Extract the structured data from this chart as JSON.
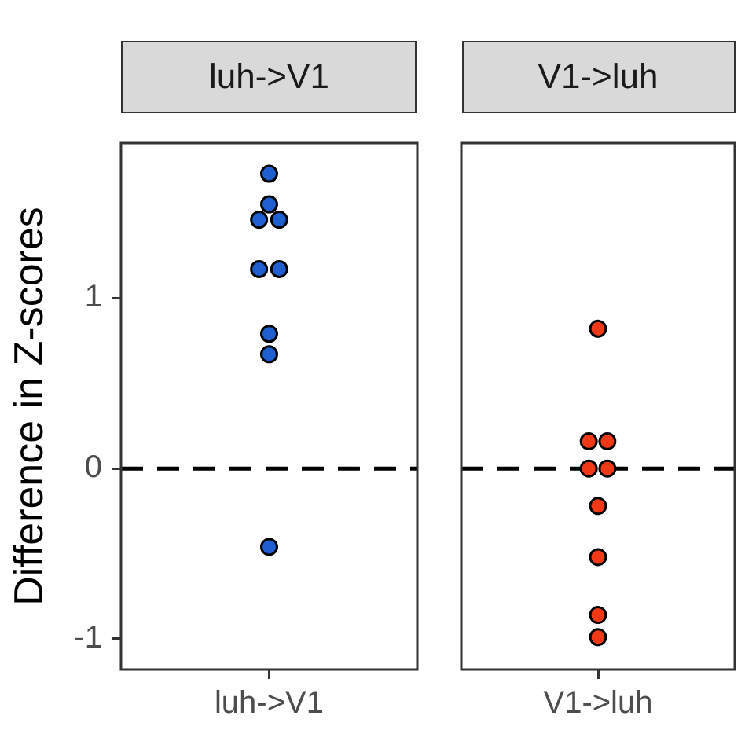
{
  "chart_data": [
    {
      "type": "scatter",
      "title": "luh->V1",
      "ylabel": "Difference in Z-scores",
      "categories": [
        "luh->V1"
      ],
      "ylim": [
        -1.18,
        1.91
      ],
      "yticks": [
        -1,
        0,
        1
      ],
      "grid": false,
      "legend": false,
      "marker": "circle",
      "series": [
        {
          "color": "#1f5fcf",
          "x": [
            "luh->V1",
            "luh->V1",
            "luh->V1",
            "luh->V1",
            "luh->V1",
            "luh->V1",
            "luh->V1",
            "luh->V1",
            "luh->V1"
          ],
          "values": [
            1.73,
            1.55,
            1.46,
            1.46,
            1.17,
            1.17,
            0.79,
            0.67,
            -0.46
          ]
        }
      ],
      "ref_lines": [
        {
          "axis": "y",
          "value": 0,
          "line_style": "dashed",
          "color": "#000000"
        }
      ]
    },
    {
      "type": "scatter",
      "title": "V1->luh",
      "categories": [
        "V1->luh"
      ],
      "ylim": [
        -1.18,
        1.91
      ],
      "yticks": [
        -1,
        0,
        1
      ],
      "grid": false,
      "legend": false,
      "marker": "circle",
      "tick_labels": "x",
      "series": [
        {
          "color": "#f03a17",
          "x": [
            "V1->luh",
            "V1->luh",
            "V1->luh",
            "V1->luh",
            "V1->luh",
            "V1->luh",
            "V1->luh",
            "V1->luh",
            "V1->luh"
          ],
          "values": [
            0.82,
            0.16,
            0.16,
            0,
            0,
            -0.22,
            -0.52,
            -0.86,
            -0.99
          ]
        }
      ],
      "ref_lines": [
        {
          "axis": "y",
          "value": 0,
          "line_style": "dashed",
          "color": "#000000"
        }
      ]
    }
  ]
}
